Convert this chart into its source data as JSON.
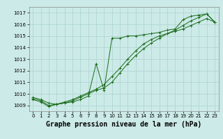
{
  "title": "Graphe pression niveau de la mer (hPa)",
  "bg_color": "#cceae7",
  "grid_color": "#aad4d0",
  "line_color": "#1a6b1a",
  "xlim": [
    -0.5,
    23.5
  ],
  "ylim": [
    1008.5,
    1017.5
  ],
  "yticks": [
    1009,
    1010,
    1011,
    1012,
    1013,
    1014,
    1015,
    1016,
    1017
  ],
  "xticks": [
    0,
    1,
    2,
    3,
    4,
    5,
    6,
    7,
    8,
    9,
    10,
    11,
    12,
    13,
    14,
    15,
    16,
    17,
    18,
    19,
    20,
    21,
    22,
    23
  ],
  "line1_x": [
    0,
    1,
    2,
    3,
    4,
    5,
    6,
    7,
    8,
    9,
    10,
    11,
    12,
    13,
    14,
    15,
    16,
    17,
    18,
    19,
    20,
    21,
    22,
    23
  ],
  "line1_y": [
    1009.7,
    1009.5,
    1009.2,
    1009.1,
    1009.3,
    1009.5,
    1009.8,
    1010.1,
    1010.4,
    1010.8,
    1011.5,
    1012.2,
    1013.0,
    1013.7,
    1014.3,
    1014.7,
    1015.0,
    1015.2,
    1015.4,
    1015.6,
    1015.9,
    1016.2,
    1016.5,
    1016.2
  ],
  "line2_x": [
    0,
    1,
    2,
    3,
    4,
    5,
    6,
    7,
    8,
    9,
    10,
    11,
    12,
    13,
    14,
    15,
    16,
    17,
    18,
    19,
    20,
    21,
    22,
    23
  ],
  "line2_y": [
    1009.5,
    1009.3,
    1008.9,
    1009.1,
    1009.2,
    1009.3,
    1009.5,
    1009.8,
    1012.6,
    1010.3,
    1014.8,
    1014.8,
    1015.0,
    1015.0,
    1015.1,
    1015.2,
    1015.3,
    1015.5,
    1015.6,
    1016.4,
    1016.7,
    1016.8,
    1016.9,
    1016.2
  ],
  "line3_x": [
    0,
    1,
    2,
    3,
    4,
    5,
    6,
    7,
    8,
    9,
    10,
    11,
    12,
    13,
    14,
    15,
    16,
    17,
    18,
    19,
    20,
    21,
    22,
    23
  ],
  "line3_y": [
    1009.6,
    1009.4,
    1009.0,
    1009.1,
    1009.2,
    1009.4,
    1009.7,
    1010.0,
    1010.3,
    1010.5,
    1011.0,
    1011.8,
    1012.6,
    1013.3,
    1013.9,
    1014.4,
    1014.8,
    1015.2,
    1015.5,
    1015.9,
    1016.3,
    1016.6,
    1016.9,
    1016.2
  ],
  "marker_size": 3,
  "title_fontsize": 7,
  "tick_fontsize": 5,
  "lw": 0.7
}
